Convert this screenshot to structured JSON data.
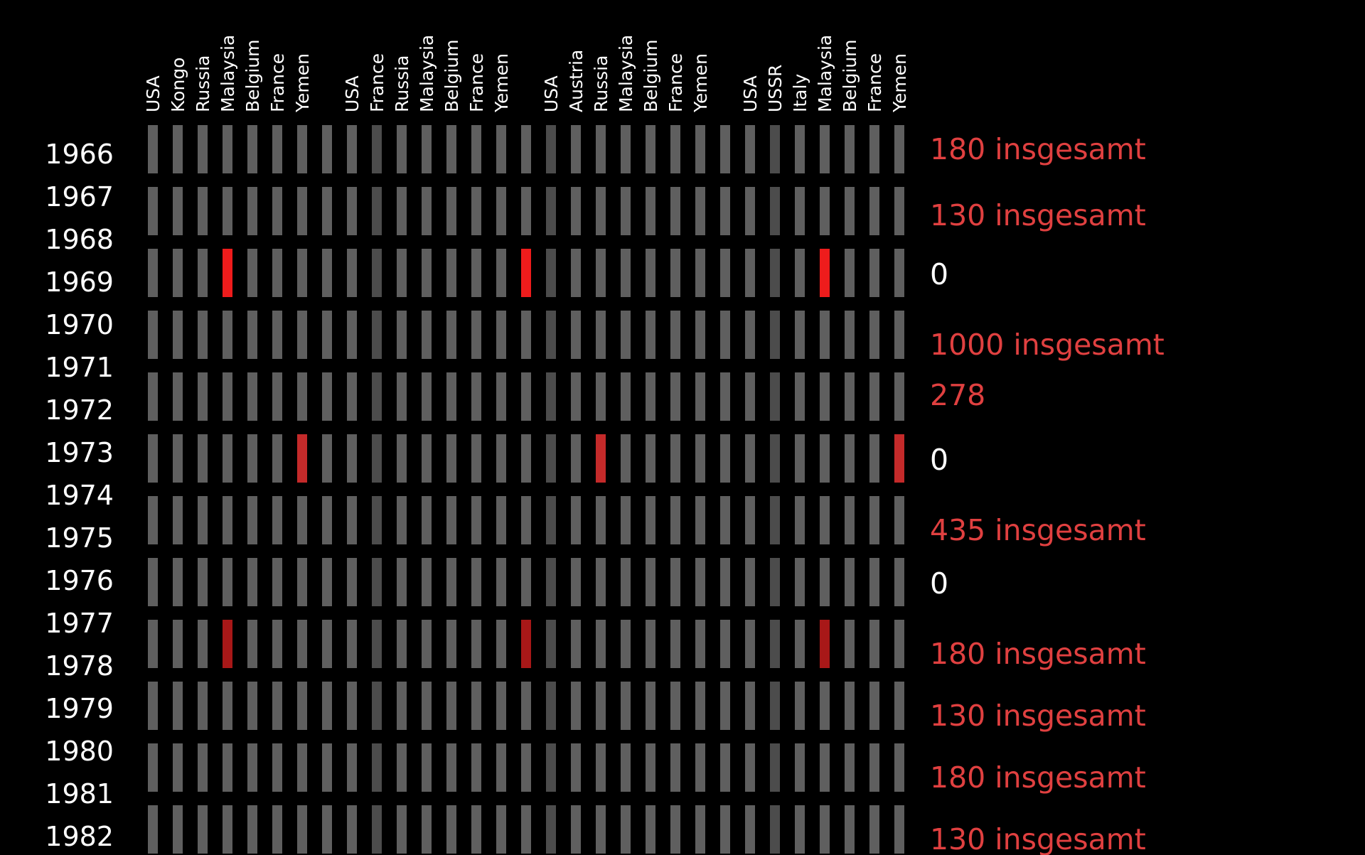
{
  "chart_data": {
    "type": "heatmap",
    "title": "",
    "xlabel": "",
    "ylabel": "",
    "columns": [
      "USA",
      "Kongo",
      "Russia",
      "Malaysia",
      "Belgium",
      "France",
      "Yemen",
      "",
      "USA",
      "France",
      "Russia",
      "Malaysia",
      "Belgium",
      "France",
      "Yemen",
      "",
      "USA",
      "Austria",
      "Russia",
      "Malaysia",
      "Belgium",
      "France",
      "Yemen",
      "",
      "USA",
      "USSR",
      "Italy",
      "Malaysia",
      "Belgium",
      "France",
      "Yemen"
    ],
    "years": [
      "1966",
      "1967",
      "1968",
      "1969",
      "1970",
      "1971",
      "1972",
      "1973",
      "1974",
      "1975",
      "1976",
      "1977",
      "1978",
      "1979",
      "1980",
      "1981",
      "1982"
    ],
    "rows": [
      {
        "total": "180 insgesamt",
        "total_color": "#e04040",
        "highlights": []
      },
      {
        "total": "130 insgesamt",
        "total_color": "#e04040",
        "highlights": []
      },
      {
        "total": "0",
        "total_color": "#ffffff",
        "highlights": [
          3,
          15,
          27
        ]
      },
      {
        "total": "1000 insgesamt",
        "total_color": "#e04040",
        "highlights": []
      },
      {
        "total": "278",
        "total_color": "#e04040",
        "highlights": []
      },
      {
        "total": "0",
        "total_color": "#ffffff",
        "highlights": [
          6,
          18,
          30
        ]
      },
      {
        "total": "435 insgesamt",
        "total_color": "#e04040",
        "highlights": []
      },
      {
        "total": "0",
        "total_color": "#ffffff",
        "highlights": []
      },
      {
        "total": "180 insgesamt",
        "total_color": "#e04040",
        "highlights": [
          3,
          15,
          27
        ]
      },
      {
        "total": "130 insgesamt",
        "total_color": "#e04040",
        "highlights": []
      },
      {
        "total": "180 insgesamt",
        "total_color": "#e04040",
        "highlights": []
      },
      {
        "total": "130 insgesamt",
        "total_color": "#e04040",
        "highlights": []
      }
    ],
    "colors": {
      "background": "#000000",
      "cell": "#5f5f5f",
      "cell_alt": "#4c4c4c",
      "highlight_bright": "#ee1c1c",
      "highlight_mid": "#c42a2a",
      "highlight_dark": "#a81818"
    },
    "grid": false,
    "legend": "none"
  }
}
